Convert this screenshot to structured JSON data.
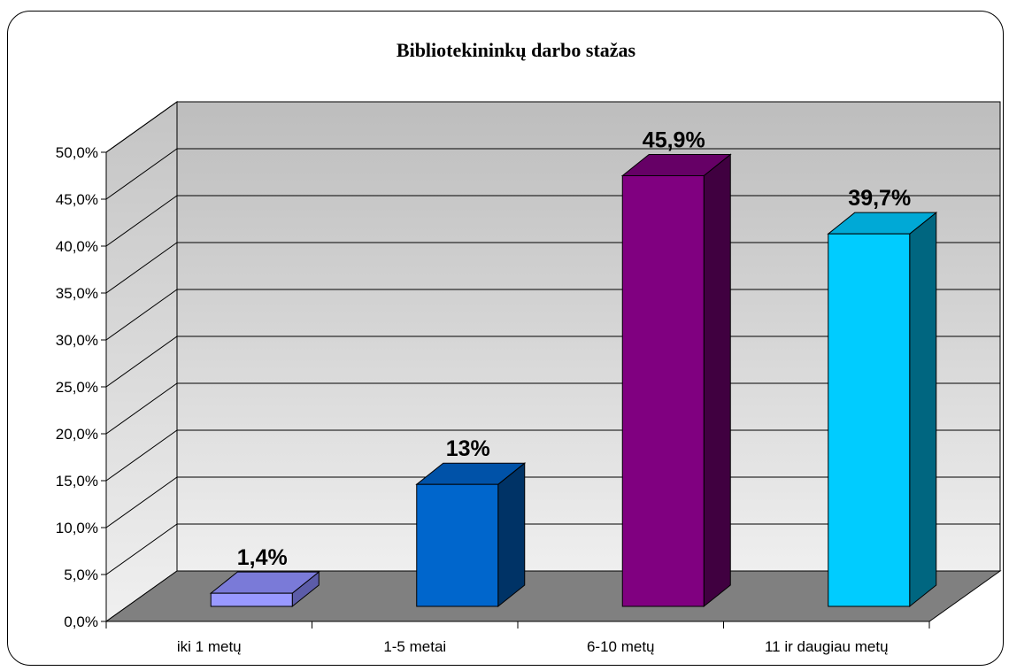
{
  "chart_data": {
    "type": "bar",
    "title": "Bibliotekininkų darbo stažas",
    "categories": [
      "iki 1 metų",
      "1-5 metai",
      "6-10 metų",
      "11 ir daugiau metų"
    ],
    "values": [
      1.4,
      13,
      45.9,
      39.7
    ],
    "data_labels": [
      "1,4%",
      "13%",
      "45,9%",
      "39,7%"
    ],
    "y_ticks": [
      "0,0%",
      "5,0%",
      "10,0%",
      "15,0%",
      "20,0%",
      "25,0%",
      "30,0%",
      "35,0%",
      "40,0%",
      "45,0%",
      "50,0%"
    ],
    "ylim": [
      0,
      50
    ],
    "grid": true,
    "legend": "none",
    "three_d": true,
    "colors": {
      "bars_front": [
        "#9999ff",
        "#0066cc",
        "#800080",
        "#00ccff"
      ],
      "bars_top": [
        "#7a7ad8",
        "#0052a8",
        "#660066",
        "#00a9d6"
      ],
      "bars_side": [
        "#5c5ca8",
        "#003366",
        "#400040",
        "#006680"
      ],
      "wall": "#c8c8c8",
      "side_wall": "#d4d4d4",
      "floor": "#808080",
      "gridline": "#000000"
    }
  }
}
